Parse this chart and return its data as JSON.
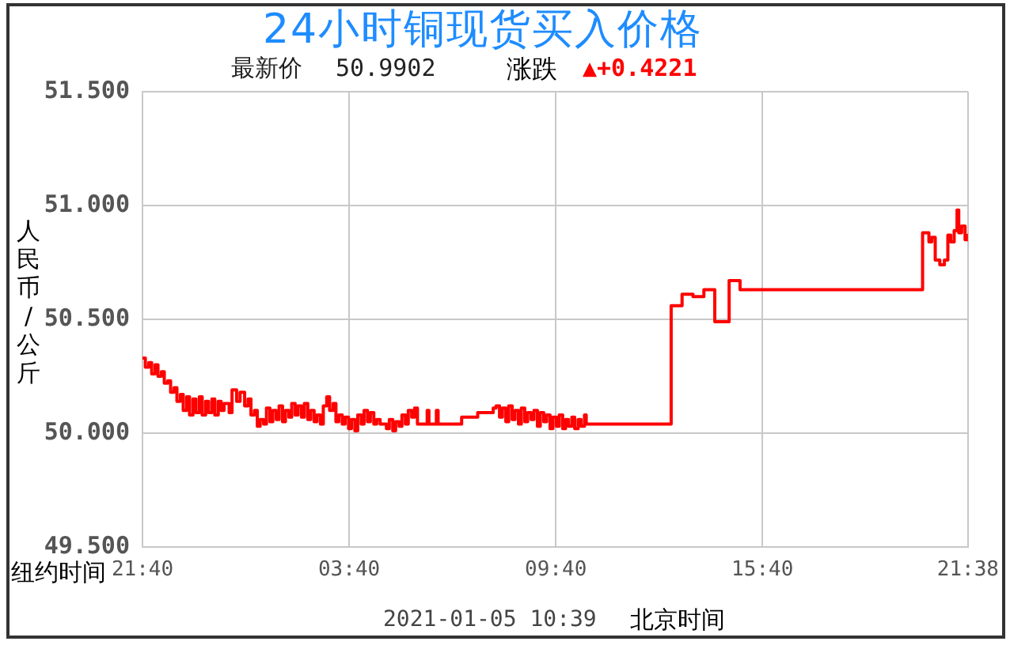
{
  "chart_data": {
    "type": "step",
    "title": "24小时铜现货买入价格",
    "subtitle": "最新价 50.9902",
    "xlabel": "纽约时间",
    "ylabel": "人民币/公斤",
    "annotations": [
      "涨跌",
      "▲+0.4221",
      "2021-01-05 10:39",
      "北京时间"
    ],
    "x": [
      "2021-01-03T21:40",
      "2021-01-03T21:45",
      "2021-01-03T21:51",
      "2021-01-03T21:56",
      "2021-01-03T22:02",
      "2021-01-03T22:07",
      "2021-01-03T22:13",
      "2021-01-03T22:18",
      "2021-01-03T22:24",
      "2021-01-03T22:29",
      "2021-01-03T22:35",
      "2021-01-03T22:40",
      "2021-01-03T22:46",
      "2021-01-03T22:51",
      "2021-01-03T22:57",
      "2021-01-03T23:02",
      "2021-01-03T23:08",
      "2021-01-03T23:13",
      "2021-01-03T23:19",
      "2021-01-03T23:24",
      "2021-01-03T23:30",
      "2021-01-03T23:35",
      "2021-01-03T23:41",
      "2021-01-03T23:46",
      "2021-01-03T23:52",
      "2021-01-03T23:57",
      "2021-01-04T00:02",
      "2021-01-04T00:11",
      "2021-01-04T00:16",
      "2021-01-04T00:24",
      "2021-01-04T00:30",
      "2021-01-04T00:38",
      "2021-01-04T00:44",
      "2021-01-04T00:49",
      "2021-01-04T00:55",
      "2021-01-04T01:00",
      "2021-01-04T01:05",
      "2021-01-04T01:11",
      "2021-01-04T01:16",
      "2021-01-04T01:22",
      "2021-01-04T01:27",
      "2021-01-04T01:33",
      "2021-01-04T01:38",
      "2021-01-04T01:44",
      "2021-01-04T01:49",
      "2021-01-04T01:55",
      "2021-01-04T02:00",
      "2021-01-04T02:06",
      "2021-01-04T02:11",
      "2021-01-04T02:17",
      "2021-01-04T02:22",
      "2021-01-04T02:28",
      "2021-01-04T02:33",
      "2021-01-04T02:39",
      "2021-01-04T02:44",
      "2021-01-04T02:50",
      "2021-01-04T02:55",
      "2021-01-04T03:01",
      "2021-01-04T03:06",
      "2021-01-04T03:12",
      "2021-01-04T03:17",
      "2021-01-04T03:22",
      "2021-01-04T03:28",
      "2021-01-04T03:33",
      "2021-01-04T03:39",
      "2021-01-04T03:44",
      "2021-01-04T03:50",
      "2021-01-04T03:55",
      "2021-01-04T04:01",
      "2021-01-04T04:06",
      "2021-01-04T04:12",
      "2021-01-04T04:17",
      "2021-01-04T04:23",
      "2021-01-04T04:28",
      "2021-01-04T04:34",
      "2021-01-04T04:39",
      "2021-01-04T04:45",
      "2021-01-04T04:50",
      "2021-01-04T04:56",
      "2021-01-04T05:01",
      "2021-01-04T05:07",
      "2021-01-04T05:12",
      "2021-01-04T05:18",
      "2021-01-04T05:23",
      "2021-01-04T05:29",
      "2021-01-04T05:34",
      "2021-01-04T05:39",
      "2021-01-04T05:45",
      "2021-01-04T05:56",
      "2021-01-04T05:59",
      "2021-01-04T06:12",
      "2021-01-04T06:15",
      "2021-01-04T06:56",
      "2021-01-04T07:10",
      "2021-01-04T07:24",
      "2021-01-04T07:37",
      "2021-01-04T07:51",
      "2021-01-04T07:56",
      "2021-01-04T08:02",
      "2021-01-04T08:07",
      "2021-01-04T08:13",
      "2021-01-04T08:18",
      "2021-01-04T08:24",
      "2021-01-04T08:29",
      "2021-01-04T08:35",
      "2021-01-04T08:40",
      "2021-01-04T08:46",
      "2021-01-04T08:51",
      "2021-01-04T08:57",
      "2021-01-04T09:02",
      "2021-01-04T09:08",
      "2021-01-04T09:13",
      "2021-01-04T09:19",
      "2021-01-04T09:24",
      "2021-01-04T09:30",
      "2021-01-04T09:35",
      "2021-01-04T09:41",
      "2021-01-04T09:46",
      "2021-01-04T09:52",
      "2021-01-04T09:57",
      "2021-01-04T10:02",
      "2021-01-04T10:08",
      "2021-01-04T10:13",
      "2021-01-04T10:19",
      "2021-01-04T10:24",
      "2021-01-04T10:30",
      "2021-01-04T10:33",
      "2021-01-04T13:01",
      "2021-01-04T13:20",
      "2021-01-04T13:39",
      "2021-01-04T13:58",
      "2021-01-04T14:17",
      "2021-01-04T14:42",
      "2021-01-04T15:01",
      "2021-01-04T20:19",
      "2021-01-04T20:30",
      "2021-01-04T20:35",
      "2021-01-04T20:41",
      "2021-01-04T20:49",
      "2021-01-04T20:57",
      "2021-01-04T21:03",
      "2021-01-04T21:08",
      "2021-01-04T21:14",
      "2021-01-04T21:19",
      "2021-01-04T21:22",
      "2021-01-04T21:27",
      "2021-01-04T21:33",
      "2021-01-04T21:38"
    ],
    "values": [
      50.33,
      50.29,
      50.31,
      50.26,
      50.3,
      50.25,
      50.27,
      50.22,
      50.23,
      50.18,
      50.2,
      50.14,
      50.17,
      50.1,
      50.16,
      50.08,
      50.15,
      50.09,
      50.16,
      50.08,
      50.14,
      50.09,
      50.15,
      50.08,
      50.14,
      50.1,
      50.13,
      50.09,
      50.19,
      50.14,
      50.18,
      50.12,
      50.15,
      50.08,
      50.1,
      50.03,
      50.06,
      50.04,
      50.11,
      50.05,
      50.1,
      50.06,
      50.12,
      50.05,
      50.1,
      50.07,
      50.13,
      50.08,
      50.12,
      50.07,
      50.13,
      50.06,
      50.1,
      50.05,
      50.08,
      50.04,
      50.12,
      50.16,
      50.1,
      50.13,
      50.05,
      50.08,
      50.04,
      50.07,
      50.02,
      50.06,
      50.01,
      50.08,
      50.04,
      50.1,
      50.05,
      50.09,
      50.04,
      50.06,
      50.04,
      50.04,
      50.02,
      50.06,
      50.01,
      50.05,
      50.03,
      50.08,
      50.04,
      50.1,
      50.07,
      50.11,
      50.04,
      50.04,
      50.1,
      50.04,
      50.1,
      50.04,
      50.07,
      50.07,
      50.09,
      50.09,
      50.11,
      50.12,
      50.07,
      50.11,
      50.05,
      50.12,
      50.06,
      50.1,
      50.04,
      50.11,
      50.05,
      50.09,
      50.06,
      50.1,
      50.03,
      50.09,
      50.05,
      50.08,
      50.02,
      50.07,
      50.03,
      50.08,
      50.02,
      50.06,
      50.03,
      50.07,
      50.02,
      50.06,
      50.03,
      50.08,
      50.04,
      50.56,
      50.61,
      50.6,
      50.63,
      50.49,
      50.67,
      50.63,
      50.88,
      50.84,
      50.86,
      50.76,
      50.74,
      50.76,
      50.87,
      50.84,
      50.89,
      50.98,
      50.88,
      50.91,
      50.85,
      50.87
    ],
    "color": "#ff0000",
    "xlim": [
      "2021-01-03T21:40",
      "2021-01-04T21:38"
    ],
    "xticks": [
      {
        "value": "2021-01-03T21:40",
        "label": "21:40"
      },
      {
        "value": "2021-01-04T03:40",
        "label": "03:40"
      },
      {
        "value": "2021-01-04T09:40",
        "label": "09:40"
      },
      {
        "value": "2021-01-04T15:40",
        "label": "15:40"
      },
      {
        "value": "2021-01-04T21:38",
        "label": "21:38"
      }
    ],
    "ylim": [
      49.5,
      51.5
    ],
    "yticks": [
      {
        "value": 49.5,
        "label": "49.500"
      },
      {
        "value": 50,
        "label": "50.000"
      },
      {
        "value": 50.5,
        "label": "50.500"
      },
      {
        "value": 51,
        "label": "51.000"
      },
      {
        "value": 51.5,
        "label": "51.500"
      }
    ],
    "grid": true
  }
}
